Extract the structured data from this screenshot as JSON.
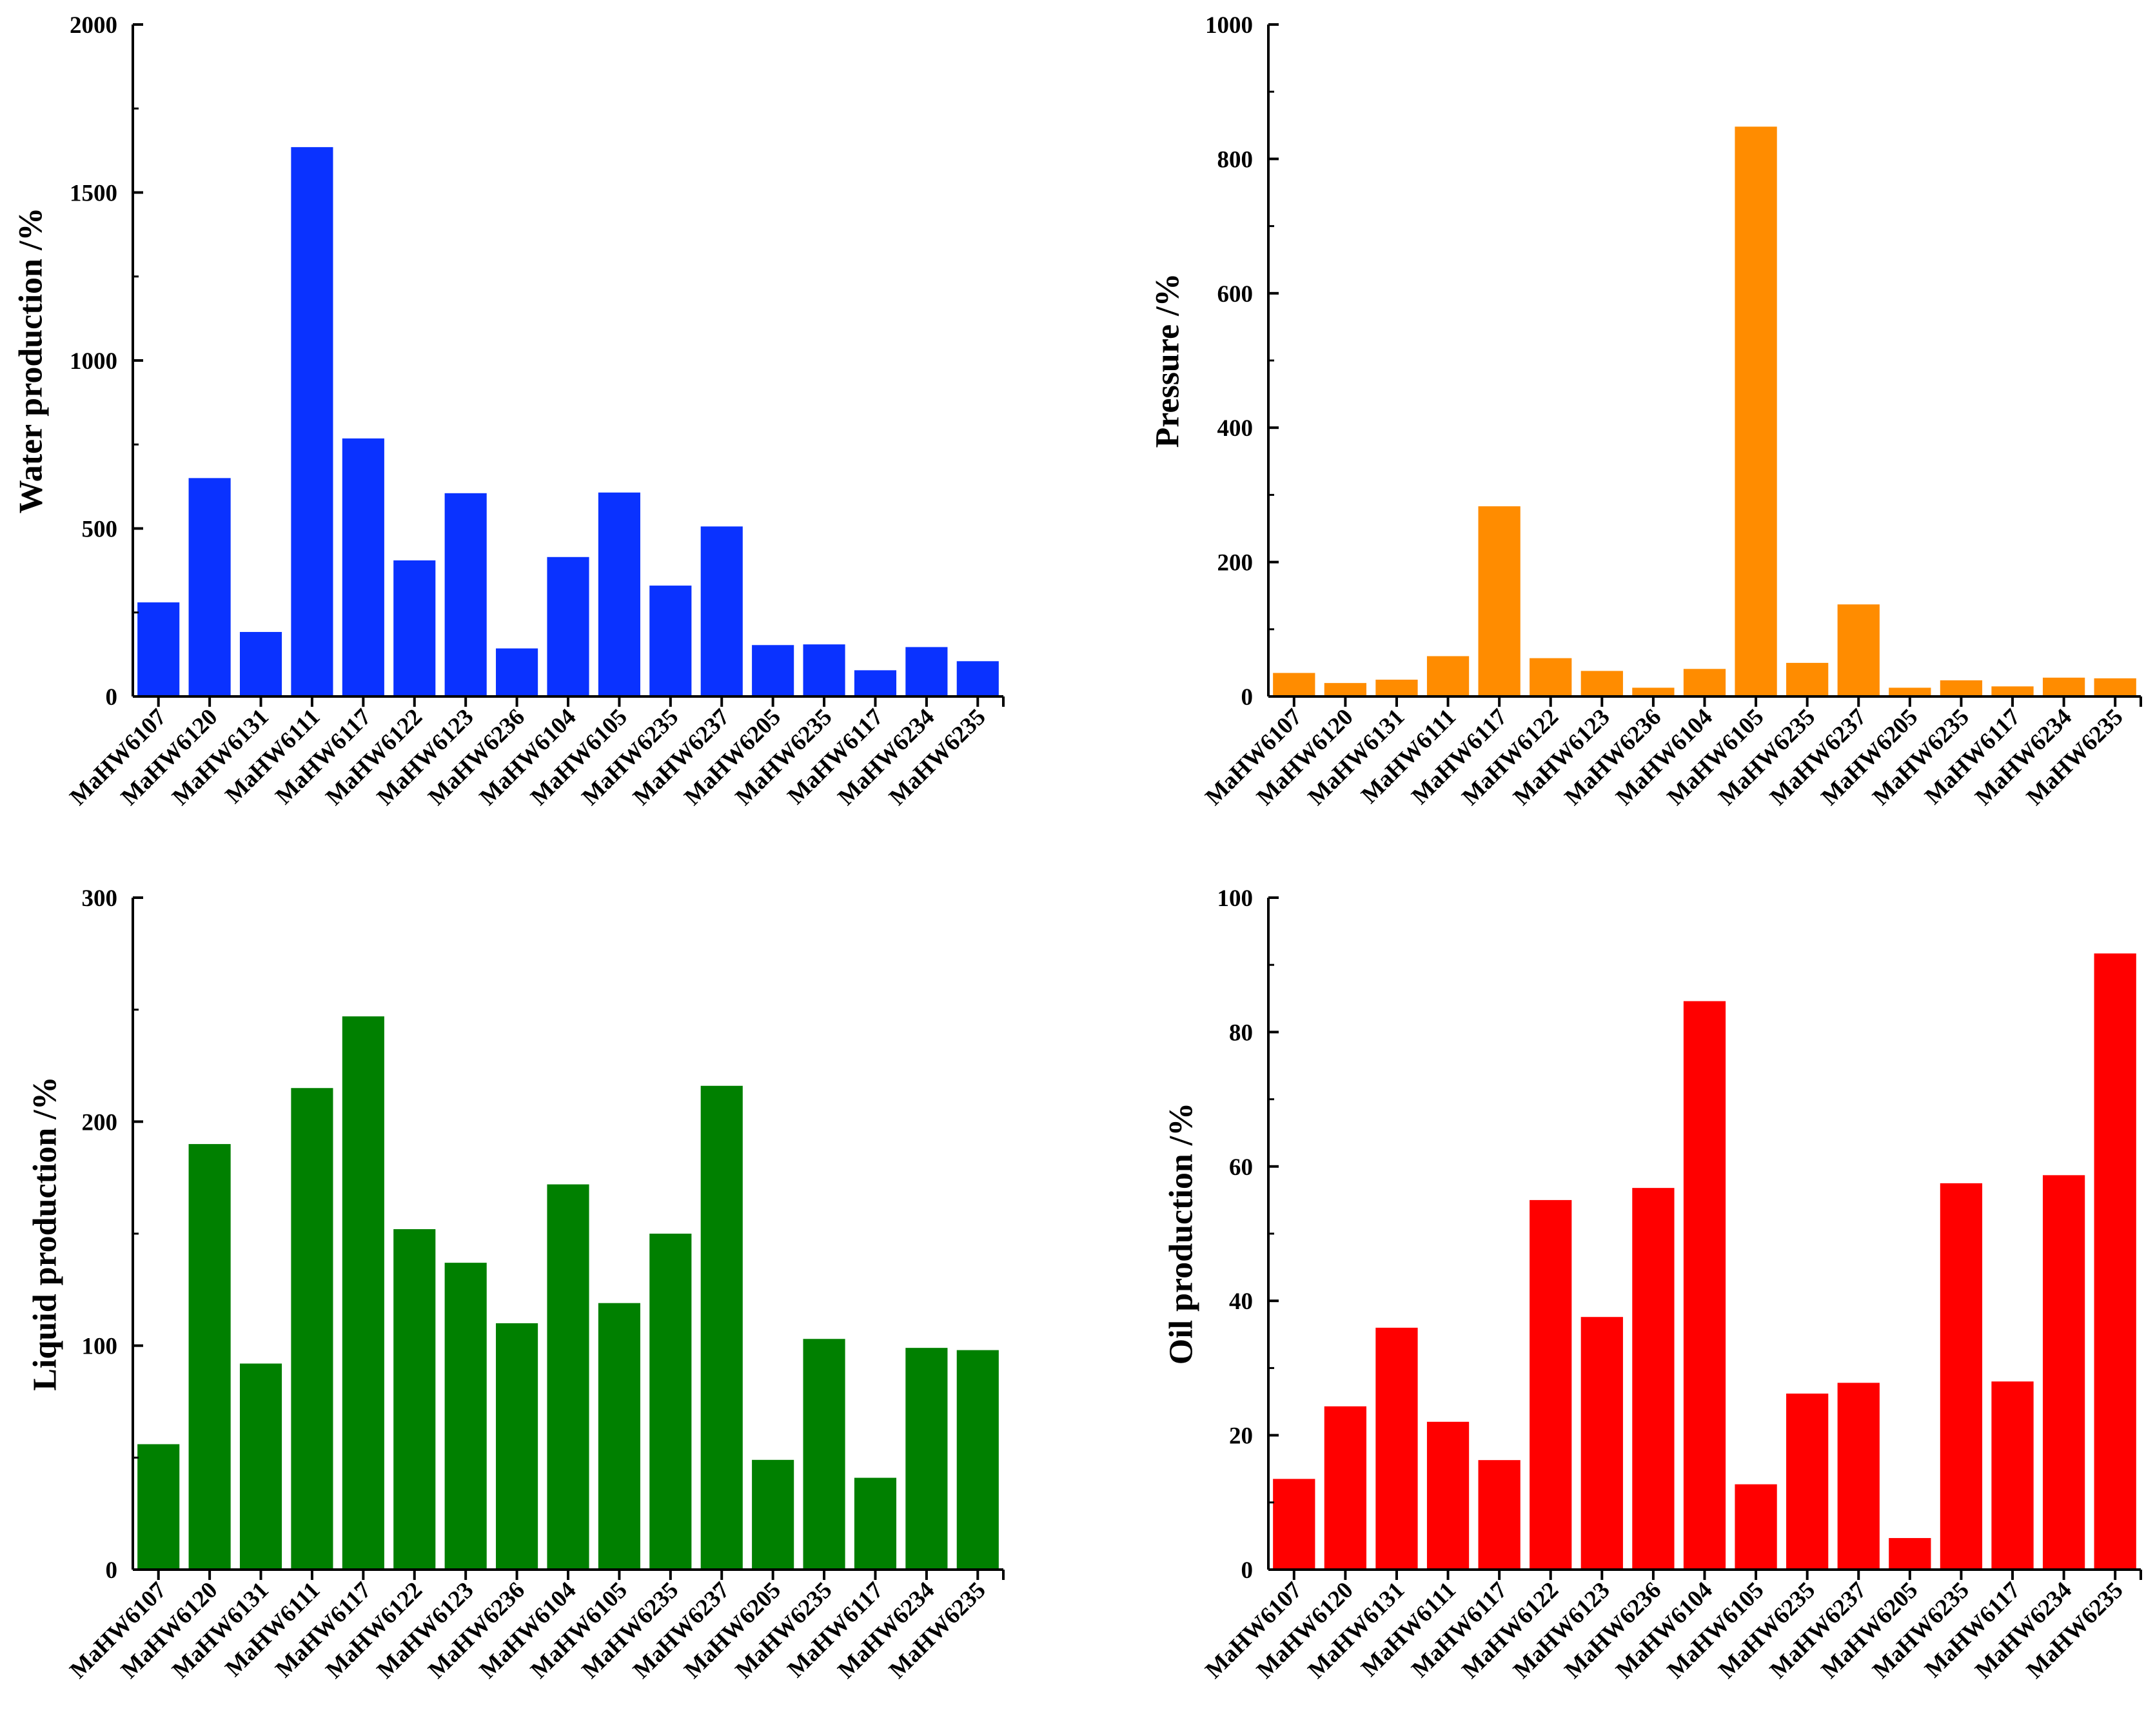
{
  "chart_data": [
    {
      "type": "bar",
      "id": "water",
      "ylabel": "Water production /%",
      "xlabel": "",
      "title": "",
      "color": "#0a32ff",
      "ylim": [
        0,
        2000
      ],
      "yticks": [
        0,
        500,
        1000,
        1500,
        2000
      ],
      "yticks_labels": [
        "0",
        "500",
        "1000",
        "1500",
        "2000"
      ],
      "categories": [
        "MaHW6107",
        "MaHW6120",
        "MaHW6131",
        "MaHW6111",
        "MaHW6117",
        "MaHW6122",
        "MaHW6123",
        "MaHW6236",
        "MaHW6104",
        "MaHW6105",
        "MaHW6235",
        "MaHW6237",
        "MaHW6205",
        "MaHW6235",
        "MaHW6117",
        "MaHW6234",
        "MaHW6235"
      ],
      "values": [
        280,
        650,
        192,
        1635,
        768,
        405,
        605,
        143,
        415,
        607,
        330,
        506,
        153,
        155,
        78,
        147,
        105
      ]
    },
    {
      "type": "bar",
      "id": "pressure",
      "ylabel": "Pressure /%",
      "xlabel": "",
      "title": "",
      "color": "#ff8c00",
      "ylim": [
        0,
        1000
      ],
      "yticks": [
        0,
        200,
        400,
        600,
        800,
        1000
      ],
      "yticks_labels": [
        "0",
        "200",
        "400",
        "600",
        "800",
        "1000"
      ],
      "categories": [
        "MaHW6107",
        "MaHW6120",
        "MaHW6131",
        "MaHW6111",
        "MaHW6117",
        "MaHW6122",
        "MaHW6123",
        "MaHW6236",
        "MaHW6104",
        "MaHW6105",
        "MaHW6235",
        "MaHW6237",
        "MaHW6205",
        "MaHW6235",
        "MaHW6117",
        "MaHW6234",
        "MaHW6235"
      ],
      "values": [
        35,
        20,
        25,
        60,
        283,
        57,
        38,
        13,
        41,
        848,
        50,
        137,
        13,
        24,
        15,
        28,
        27
      ]
    },
    {
      "type": "bar",
      "id": "liquid",
      "ylabel": "Liquid production /%",
      "xlabel": "",
      "title": "",
      "color": "#008000",
      "ylim": [
        0,
        300
      ],
      "yticks": [
        0,
        100,
        200,
        300
      ],
      "yticks_labels": [
        "0",
        "100",
        "200",
        "300"
      ],
      "categories": [
        "MaHW6107",
        "MaHW6120",
        "MaHW6131",
        "MaHW6111",
        "MaHW6117",
        "MaHW6122",
        "MaHW6123",
        "MaHW6236",
        "MaHW6104",
        "MaHW6105",
        "MaHW6235",
        "MaHW6237",
        "MaHW6205",
        "MaHW6235",
        "MaHW6117",
        "MaHW6234",
        "MaHW6235"
      ],
      "values": [
        56,
        190,
        92,
        215,
        247,
        152,
        137,
        110,
        172,
        119,
        150,
        216,
        49,
        103,
        41,
        99,
        98
      ]
    },
    {
      "type": "bar",
      "id": "oil",
      "ylabel": "Oil production /%",
      "xlabel": "",
      "title": "",
      "color": "#ff0000",
      "ylim": [
        0,
        100
      ],
      "yticks": [
        0,
        20,
        40,
        60,
        80,
        100
      ],
      "yticks_labels": [
        "0",
        "20",
        "40",
        "60",
        "80",
        "100"
      ],
      "categories": [
        "MaHW6107",
        "MaHW6120",
        "MaHW6131",
        "MaHW6111",
        "MaHW6117",
        "MaHW6122",
        "MaHW6123",
        "MaHW6236",
        "MaHW6104",
        "MaHW6105",
        "MaHW6235",
        "MaHW6237",
        "MaHW6205",
        "MaHW6235",
        "MaHW6117",
        "MaHW6234",
        "MaHW6235"
      ],
      "values": [
        13.5,
        24.3,
        36.0,
        22.0,
        16.3,
        55.0,
        37.6,
        56.8,
        84.6,
        12.7,
        26.2,
        27.8,
        4.7,
        57.5,
        28.0,
        58.7,
        91.7
      ]
    }
  ]
}
